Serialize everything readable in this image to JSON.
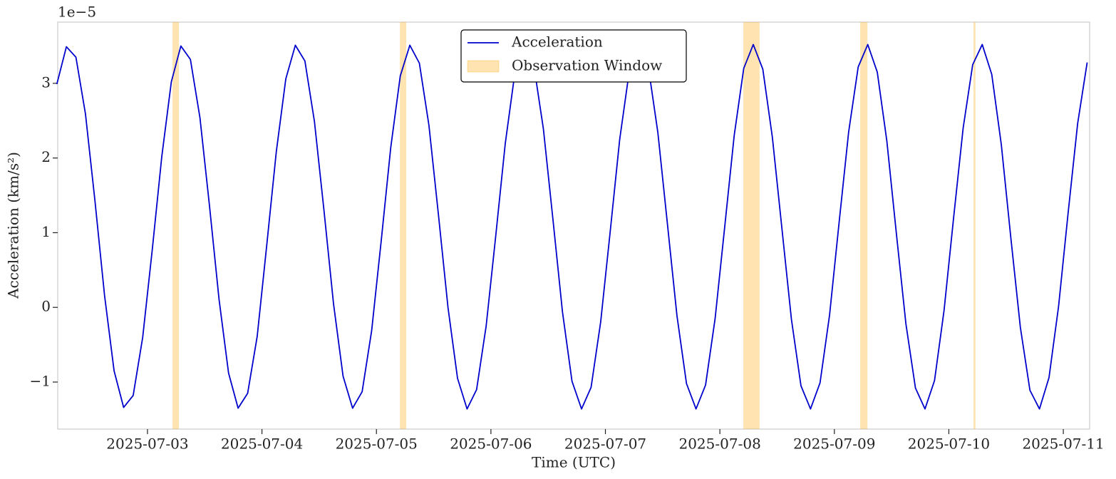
{
  "chart_data": {
    "type": "line",
    "offset_label": "1e−5",
    "xlabel": "Time (UTC)",
    "ylabel": "Acceleration (km/s²)",
    "x": [
      "2025-07-02 05:00",
      "2025-07-02 07:00",
      "2025-07-02 09:00",
      "2025-07-02 11:00",
      "2025-07-02 13:00",
      "2025-07-02 15:00",
      "2025-07-02 17:00",
      "2025-07-02 19:00",
      "2025-07-02 21:00",
      "2025-07-02 23:00",
      "2025-07-03 01:00",
      "2025-07-03 03:00",
      "2025-07-03 05:00",
      "2025-07-03 07:00",
      "2025-07-03 09:00",
      "2025-07-03 11:00",
      "2025-07-03 13:00",
      "2025-07-03 15:00",
      "2025-07-03 17:00",
      "2025-07-03 19:00",
      "2025-07-03 21:00",
      "2025-07-03 23:00",
      "2025-07-04 01:00",
      "2025-07-04 03:00",
      "2025-07-04 05:00",
      "2025-07-04 07:00",
      "2025-07-04 09:00",
      "2025-07-04 11:00",
      "2025-07-04 13:00",
      "2025-07-04 15:00",
      "2025-07-04 17:00",
      "2025-07-04 19:00",
      "2025-07-04 21:00",
      "2025-07-04 23:00",
      "2025-07-05 01:00",
      "2025-07-05 03:00",
      "2025-07-05 05:00",
      "2025-07-05 07:00",
      "2025-07-05 09:00",
      "2025-07-05 11:00",
      "2025-07-05 13:00",
      "2025-07-05 15:00",
      "2025-07-05 17:00",
      "2025-07-05 19:00",
      "2025-07-05 21:00",
      "2025-07-05 23:00",
      "2025-07-06 01:00",
      "2025-07-06 03:00",
      "2025-07-06 05:00",
      "2025-07-06 07:00",
      "2025-07-06 09:00",
      "2025-07-06 11:00",
      "2025-07-06 13:00",
      "2025-07-06 15:00",
      "2025-07-06 17:00",
      "2025-07-06 19:00",
      "2025-07-06 21:00",
      "2025-07-06 23:00",
      "2025-07-07 01:00",
      "2025-07-07 03:00",
      "2025-07-07 05:00",
      "2025-07-07 07:00",
      "2025-07-07 09:00",
      "2025-07-07 11:00",
      "2025-07-07 13:00",
      "2025-07-07 15:00",
      "2025-07-07 17:00",
      "2025-07-07 19:00",
      "2025-07-07 21:00",
      "2025-07-07 23:00",
      "2025-07-08 01:00",
      "2025-07-08 03:00",
      "2025-07-08 05:00",
      "2025-07-08 07:00",
      "2025-07-08 09:00",
      "2025-07-08 11:00",
      "2025-07-08 13:00",
      "2025-07-08 15:00",
      "2025-07-08 17:00",
      "2025-07-08 19:00",
      "2025-07-08 21:00",
      "2025-07-08 23:00",
      "2025-07-09 01:00",
      "2025-07-09 03:00",
      "2025-07-09 05:00",
      "2025-07-09 07:00",
      "2025-07-09 09:00",
      "2025-07-09 11:00",
      "2025-07-09 13:00",
      "2025-07-09 15:00",
      "2025-07-09 17:00",
      "2025-07-09 19:00",
      "2025-07-09 21:00",
      "2025-07-09 23:00",
      "2025-07-10 01:00",
      "2025-07-10 03:00",
      "2025-07-10 05:00",
      "2025-07-10 07:00",
      "2025-07-10 09:00",
      "2025-07-10 11:00",
      "2025-07-10 13:00",
      "2025-07-10 15:00",
      "2025-07-10 17:00",
      "2025-07-10 19:00",
      "2025-07-10 21:00",
      "2025-07-10 23:00",
      "2025-07-11 01:00",
      "2025-07-11 03:00",
      "2025-07-11 05:00"
    ],
    "series": [
      {
        "name": "Acceleration",
        "color": "#0000cd",
        "values": [
          2.99,
          3.49,
          3.35,
          2.59,
          1.42,
          0.16,
          -0.85,
          -1.34,
          -1.18,
          -0.4,
          0.77,
          2.02,
          3.02,
          3.5,
          3.32,
          2.54,
          1.36,
          0.11,
          -0.88,
          -1.35,
          -1.15,
          -0.39,
          0.83,
          2.08,
          3.06,
          3.51,
          3.3,
          2.49,
          1.3,
          0.05,
          -0.92,
          -1.35,
          -1.13,
          -0.31,
          0.89,
          2.14,
          3.1,
          3.51,
          3.27,
          2.44,
          1.24,
          0.0,
          -0.95,
          -1.36,
          -1.1,
          -0.25,
          0.95,
          2.19,
          3.13,
          3.52,
          3.24,
          2.39,
          1.18,
          -0.06,
          -0.99,
          -1.36,
          -1.07,
          -0.2,
          1.01,
          2.25,
          3.16,
          3.52,
          3.22,
          2.34,
          1.12,
          -0.11,
          -1.02,
          -1.36,
          -1.04,
          -0.15,
          1.07,
          2.3,
          3.2,
          3.52,
          3.19,
          2.28,
          1.06,
          -0.16,
          -1.05,
          -1.36,
          -1.01,
          -0.1,
          1.14,
          2.35,
          3.22,
          3.52,
          3.15,
          2.23,
          0.99,
          -0.22,
          -1.08,
          -1.36,
          -0.98,
          -0.04,
          1.2,
          2.4,
          3.25,
          3.52,
          3.12,
          2.18,
          0.93,
          -0.27,
          -1.11,
          -1.36,
          -0.94,
          0.01,
          1.26,
          2.46,
          3.28
        ]
      }
    ],
    "windows": {
      "name": "Observation Window",
      "color": "orange",
      "alpha": 0.3,
      "spans": [
        [
          "2025-07-03 05:15",
          "2025-07-03 06:35"
        ],
        [
          "2025-07-05 04:55",
          "2025-07-05 06:15"
        ],
        [
          "2025-07-08 04:55",
          "2025-07-08 08:20"
        ],
        [
          "2025-07-09 05:25",
          "2025-07-09 06:55"
        ],
        [
          "2025-07-10 05:10",
          "2025-07-10 05:35"
        ]
      ]
    },
    "xlim": [
      "2025-07-02 05:11",
      "2025-07-11 05:31"
    ],
    "xticks": [
      "2025-07-03",
      "2025-07-04",
      "2025-07-05",
      "2025-07-06",
      "2025-07-07",
      "2025-07-08",
      "2025-07-09",
      "2025-07-10",
      "2025-07-11"
    ],
    "ylim": [
      -1.63,
      3.82
    ],
    "yticks": [
      {
        "value": -1,
        "label": "−1"
      },
      0,
      1,
      2,
      3
    ],
    "grid": false,
    "legend": "upper center"
  }
}
